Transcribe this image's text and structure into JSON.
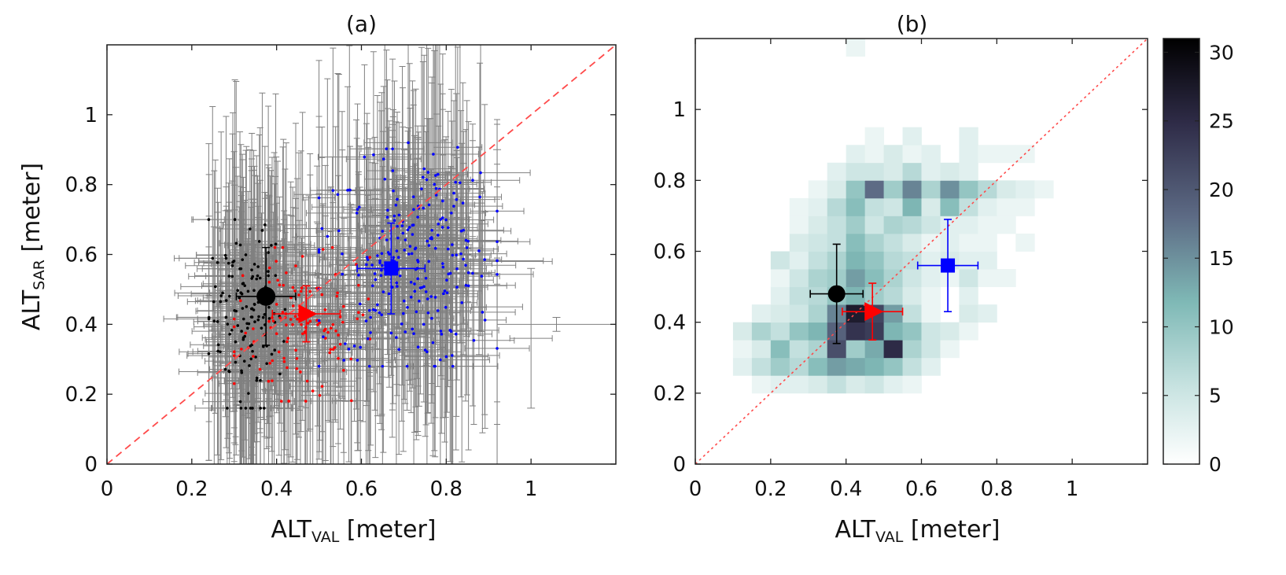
{
  "colors": {
    "black_group": "#000000",
    "red_group": "#ff0000",
    "blue_group": "#0000ff",
    "errorbar_gray": "#808080",
    "diagonal": "#ff4a4a",
    "colormap_low": "#ffffff",
    "colormap_mid": "#7fb9b6",
    "colormap_high": "#000000"
  },
  "chart_data": [
    {
      "type": "scatter",
      "title": "(a)",
      "xlabel": {
        "main": "ALT",
        "sub": "VAL",
        "unit": " [meter]"
      },
      "ylabel": {
        "main": "ALT",
        "sub": "SAR",
        "unit": " [meter]"
      },
      "xlim": [
        0,
        1.2
      ],
      "ylim": [
        0,
        1.2
      ],
      "xticks": [
        0,
        0.2,
        0.4,
        0.6,
        0.8,
        1
      ],
      "yticks": [
        0,
        0.2,
        0.4,
        0.6,
        0.8,
        1
      ],
      "xtick_labels": [
        "0",
        "0.2",
        "0.4",
        "0.6",
        "0.8",
        "1"
      ],
      "ytick_labels": [
        "0",
        "0.2",
        "0.4",
        "0.6",
        "0.8",
        "1"
      ],
      "reference_line": {
        "style": "dashed",
        "from": [
          0,
          0
        ],
        "to": [
          1.2,
          1.2
        ]
      },
      "groups": [
        {
          "name": "black",
          "color": "#000000",
          "count": 140,
          "x_range": [
            0.24,
            0.42
          ],
          "y_range": [
            0.16,
            0.7
          ]
        },
        {
          "name": "red",
          "color": "#ff0000",
          "count": 120,
          "x_range": [
            0.3,
            0.62
          ],
          "y_range": [
            0.18,
            0.62
          ]
        },
        {
          "name": "blue",
          "color": "#0000ff",
          "count": 240,
          "x_range": [
            0.5,
            0.92
          ],
          "y_range": [
            0.28,
            0.92
          ]
        }
      ],
      "group_means": [
        {
          "name": "black",
          "marker": "circle",
          "color": "#000000",
          "x": 0.375,
          "y": 0.48,
          "x_err": 0.07,
          "y_err": 0.14
        },
        {
          "name": "red",
          "marker": "triangle-right",
          "color": "#ff0000",
          "x": 0.47,
          "y": 0.43,
          "x_err": 0.08,
          "y_err": 0.08
        },
        {
          "name": "blue",
          "marker": "square",
          "color": "#0000ff",
          "x": 0.67,
          "y": 0.56,
          "x_err": 0.08,
          "y_err": 0.13
        }
      ]
    },
    {
      "type": "heatmap",
      "title": "(b)",
      "xlabel": {
        "main": "ALT",
        "sub": "VAL",
        "unit": " [meter]"
      },
      "xlim": [
        0,
        1.2
      ],
      "ylim": [
        0,
        1.2
      ],
      "xticks": [
        0,
        0.2,
        0.4,
        0.6,
        0.8,
        1
      ],
      "yticks": [
        0,
        0.2,
        0.4,
        0.6,
        0.8,
        1
      ],
      "xtick_labels": [
        "0",
        "0.2",
        "0.4",
        "0.6",
        "0.8",
        "1"
      ],
      "ytick_labels": [
        "0",
        "0.2",
        "0.4",
        "0.6",
        "0.8",
        "1"
      ],
      "reference_line": {
        "style": "dotted",
        "from": [
          0,
          0
        ],
        "to": [
          1.2,
          1.2
        ]
      },
      "bin_size": 0.05,
      "grid_x_start": 0.1,
      "grid_y_start": 0.2,
      "cell_counts": [
        [
          0,
          2,
          3,
          3,
          4,
          6,
          4,
          5,
          3,
          2,
          0,
          0,
          0,
          0,
          0,
          0,
          0
        ],
        [
          3,
          6,
          9,
          7,
          11,
          14,
          13,
          12,
          10,
          6,
          3,
          0,
          0,
          0,
          0,
          0,
          0
        ],
        [
          2,
          4,
          11,
          6,
          8,
          21,
          9,
          13,
          25,
          8,
          5,
          2,
          0,
          0,
          0,
          0,
          0
        ],
        [
          4,
          8,
          6,
          10,
          12,
          19,
          24,
          23,
          12,
          10,
          5,
          4,
          2,
          0,
          0,
          0,
          0
        ],
        [
          0,
          3,
          4,
          5,
          8,
          16,
          27,
          22,
          14,
          6,
          2,
          0,
          4,
          3,
          0,
          0,
          0
        ],
        [
          0,
          0,
          3,
          6,
          7,
          10,
          12,
          9,
          7,
          4,
          2,
          0,
          3,
          0,
          0,
          0,
          0
        ],
        [
          0,
          0,
          2,
          5,
          8,
          9,
          14,
          11,
          8,
          5,
          3,
          2,
          5,
          2,
          2,
          0,
          0
        ],
        [
          0,
          0,
          5,
          3,
          6,
          8,
          12,
          10,
          7,
          6,
          3,
          4,
          3,
          3,
          0,
          0,
          0
        ],
        [
          0,
          0,
          0,
          4,
          5,
          6,
          11,
          8,
          6,
          4,
          2,
          3,
          2,
          2,
          0,
          2,
          0
        ],
        [
          0,
          0,
          0,
          2,
          4,
          6,
          9,
          5,
          8,
          7,
          5,
          3,
          3,
          2,
          2,
          0,
          0
        ],
        [
          0,
          0,
          0,
          2,
          3,
          7,
          11,
          6,
          5,
          12,
          4,
          11,
          6,
          3,
          2,
          2,
          0
        ],
        [
          0,
          0,
          0,
          0,
          2,
          4,
          10,
          18,
          9,
          16,
          8,
          15,
          10,
          7,
          4,
          3,
          2
        ],
        [
          0,
          0,
          0,
          0,
          0,
          3,
          5,
          5,
          4,
          7,
          3,
          4,
          3,
          0,
          0,
          0,
          0
        ],
        [
          0,
          0,
          0,
          0,
          0,
          0,
          3,
          2,
          4,
          2,
          3,
          0,
          3,
          2,
          2,
          2,
          0
        ],
        [
          0,
          0,
          0,
          0,
          0,
          0,
          0,
          2,
          0,
          3,
          0,
          0,
          3,
          0,
          0,
          0,
          0
        ],
        [
          0,
          0,
          0,
          0,
          0,
          0,
          0,
          0,
          0,
          0,
          0,
          0,
          0,
          0,
          0,
          0,
          0
        ],
        [
          0,
          0,
          0,
          0,
          0,
          0,
          0,
          0,
          0,
          0,
          0,
          0,
          0,
          0,
          0,
          0,
          0
        ],
        [
          0,
          0,
          0,
          0,
          0,
          0,
          0,
          0,
          0,
          0,
          0,
          0,
          0,
          0,
          0,
          0,
          0
        ],
        [
          0,
          0,
          0,
          0,
          0,
          0,
          0,
          0,
          0,
          0,
          0,
          0,
          0,
          0,
          0,
          0,
          0
        ],
        [
          0,
          0,
          0,
          0,
          0,
          0,
          2,
          0,
          0,
          0,
          0,
          0,
          0,
          0,
          0,
          0,
          0
        ]
      ],
      "colorbar": {
        "min": 0,
        "max": 31,
        "ticks": [
          0,
          5,
          10,
          15,
          20,
          25,
          30
        ],
        "tick_labels": [
          "0",
          "5",
          "10",
          "15",
          "20",
          "25",
          "30"
        ]
      },
      "group_means": [
        {
          "name": "black",
          "marker": "circle",
          "color": "#000000",
          "x": 0.375,
          "y": 0.48,
          "x_err": 0.07,
          "y_err": 0.14
        },
        {
          "name": "red",
          "marker": "triangle-right",
          "color": "#ff0000",
          "x": 0.47,
          "y": 0.43,
          "x_err": 0.08,
          "y_err": 0.08
        },
        {
          "name": "blue",
          "marker": "square",
          "color": "#0000ff",
          "x": 0.67,
          "y": 0.56,
          "x_err": 0.08,
          "y_err": 0.13
        }
      ]
    }
  ]
}
